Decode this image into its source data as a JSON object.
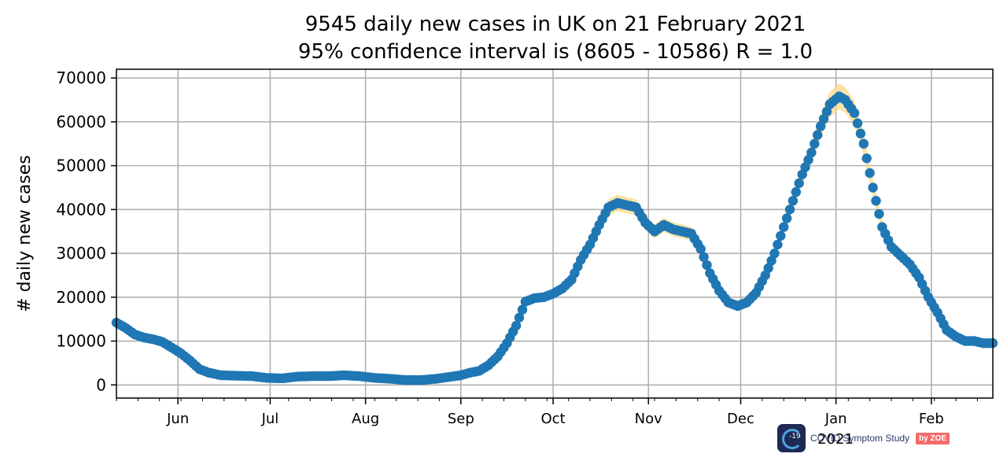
{
  "chart_data": {
    "type": "scatter",
    "title": "9545 daily new cases in UK on 21 February 2021",
    "subtitle": "95% confidence interval is (8605 - 10586) R = 1.0",
    "ylabel": "# daily new cases",
    "xlabel": "",
    "year_label": "2021",
    "x_start": "2020-05-12",
    "x_end": "2021-02-21",
    "ylim": [
      -3000,
      72000
    ],
    "yticks": [
      0,
      10000,
      20000,
      30000,
      40000,
      50000,
      60000,
      70000
    ],
    "xticks": [
      {
        "date": "2020-06-01",
        "label": "Jun"
      },
      {
        "date": "2020-07-01",
        "label": "Jul"
      },
      {
        "date": "2020-08-01",
        "label": "Aug"
      },
      {
        "date": "2020-09-01",
        "label": "Sep"
      },
      {
        "date": "2020-10-01",
        "label": "Oct"
      },
      {
        "date": "2020-11-01",
        "label": "Nov"
      },
      {
        "date": "2020-12-01",
        "label": "Dec"
      },
      {
        "date": "2021-01-01",
        "label": "Jan"
      },
      {
        "date": "2021-02-01",
        "label": "Feb"
      }
    ],
    "grid": true,
    "point_color": "#1f77b4",
    "ci_color": "#fbd98a",
    "series": [
      {
        "x": [
          "2020-05-12",
          "2020-05-15",
          "2020-05-18",
          "2020-05-21",
          "2020-05-24",
          "2020-05-27",
          "2020-05-30",
          "2020-06-02",
          "2020-06-05",
          "2020-06-08",
          "2020-06-11",
          "2020-06-15",
          "2020-06-20",
          "2020-06-25",
          "2020-06-30",
          "2020-07-05",
          "2020-07-10",
          "2020-07-15",
          "2020-07-20",
          "2020-07-25",
          "2020-07-30",
          "2020-08-04",
          "2020-08-09",
          "2020-08-14",
          "2020-08-19",
          "2020-08-24",
          "2020-08-29",
          "2020-09-01",
          "2020-09-04",
          "2020-09-07",
          "2020-09-10",
          "2020-09-13",
          "2020-09-16",
          "2020-09-19",
          "2020-09-22",
          "2020-09-25",
          "2020-09-28",
          "2020-10-01",
          "2020-10-04",
          "2020-10-07",
          "2020-10-10",
          "2020-10-13",
          "2020-10-16",
          "2020-10-19",
          "2020-10-22",
          "2020-10-25",
          "2020-10-28",
          "2020-10-31",
          "2020-11-03",
          "2020-11-06",
          "2020-11-09",
          "2020-11-12",
          "2020-11-15",
          "2020-11-18",
          "2020-11-21",
          "2020-11-24",
          "2020-11-27",
          "2020-11-30",
          "2020-12-03",
          "2020-12-06",
          "2020-12-09",
          "2020-12-12",
          "2020-12-15",
          "2020-12-18",
          "2020-12-21",
          "2020-12-24",
          "2020-12-27",
          "2020-12-30",
          "2021-01-02",
          "2021-01-04",
          "2021-01-07",
          "2021-01-10",
          "2021-01-13",
          "2021-01-16",
          "2021-01-19",
          "2021-01-22",
          "2021-01-25",
          "2021-01-28",
          "2021-01-31",
          "2021-02-03",
          "2021-02-06",
          "2021-02-09",
          "2021-02-12",
          "2021-02-15",
          "2021-02-18",
          "2021-02-21"
        ],
        "y": [
          14200,
          13000,
          11500,
          10800,
          10400,
          9800,
          8500,
          7200,
          5500,
          3600,
          2800,
          2200,
          2100,
          2000,
          1600,
          1500,
          1900,
          2000,
          2000,
          2200,
          2000,
          1600,
          1400,
          1100,
          1100,
          1400,
          1900,
          2200,
          2800,
          3200,
          4500,
          6500,
          9500,
          13500,
          19000,
          19800,
          20000,
          20800,
          22000,
          24000,
          28500,
          32000,
          36500,
          40500,
          41500,
          41000,
          40500,
          37000,
          35000,
          36500,
          35500,
          35000,
          34500,
          31000,
          25500,
          21500,
          18800,
          18000,
          18800,
          21000,
          25000,
          30000,
          36000,
          42000,
          48000,
          53000,
          59000,
          64000,
          65800,
          65000,
          62000,
          55000,
          45000,
          36000,
          31500,
          29500,
          27500,
          24500,
          20000,
          16500,
          12500,
          11000,
          10000,
          10000,
          9500,
          9545
        ]
      }
    ]
  },
  "branding": {
    "app_name": "COVID Symptom Study",
    "by": "by ZOE",
    "badge": "-19",
    "icon": "covid-symptom-study-logo"
  }
}
